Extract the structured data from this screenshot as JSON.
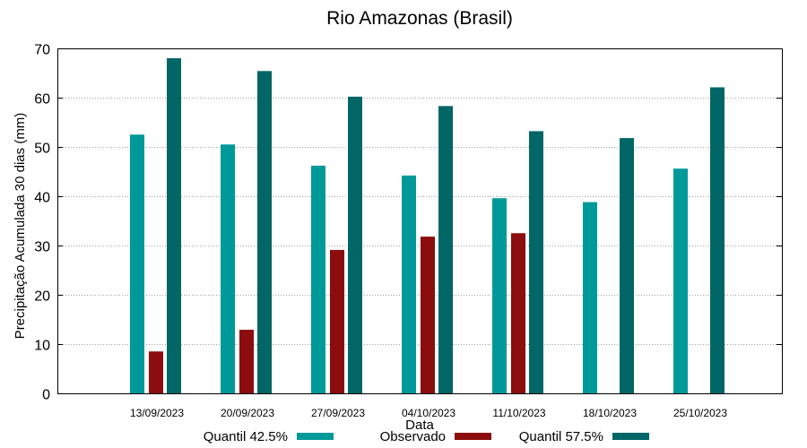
{
  "chart_data": {
    "type": "bar",
    "title": "Rio Amazonas (Brasil)",
    "xlabel": "Data",
    "ylabel": "Precipitação Acumulada 30 dias (mm)",
    "ylim": [
      0,
      70
    ],
    "yticks": [
      0,
      10,
      20,
      30,
      40,
      50,
      60,
      70
    ],
    "grid": true,
    "legend_position": "bottom",
    "categories": [
      "13/09/2023",
      "20/09/2023",
      "27/09/2023",
      "04/10/2023",
      "11/10/2023",
      "18/10/2023",
      "25/10/2023"
    ],
    "series": [
      {
        "name": "Quantil 42.5%",
        "color": "#009999",
        "values": [
          52.5,
          50.5,
          46.2,
          44.2,
          39.6,
          38.8,
          45.6
        ]
      },
      {
        "name": "Observado",
        "color": "#8b0d0d",
        "values": [
          8.5,
          12.9,
          29.1,
          31.8,
          32.5,
          null,
          null
        ]
      },
      {
        "name": "Quantil 57.5%",
        "color": "#006666",
        "values": [
          68.0,
          65.4,
          60.2,
          58.3,
          53.2,
          51.8,
          62.1
        ]
      }
    ]
  }
}
